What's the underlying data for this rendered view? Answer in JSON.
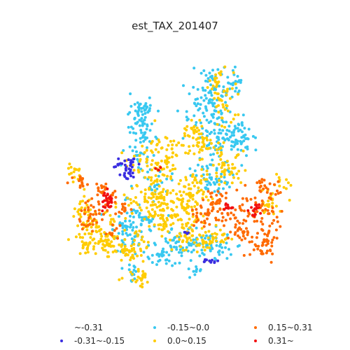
{
  "title": "est_TAX_201407",
  "legend": {
    "items": [
      {
        "label": "~-0.31",
        "color": "#ffffff"
      },
      {
        "label": "-0.31~-0.15",
        "color": "#3a2de0"
      },
      {
        "label": "-0.15~0.0",
        "color": "#38c8f0"
      },
      {
        "label": "0.0~0.15",
        "color": "#ffcc00"
      },
      {
        "label": "0.15~0.31",
        "color": "#ff6a00"
      },
      {
        "label": "0.31~",
        "color": "#f21010"
      }
    ]
  },
  "chart_data": {
    "type": "scatter",
    "title": "est_TAX_201407",
    "classes": [
      "~-0.31",
      "-0.31~-0.15",
      "-0.15~0.0",
      "0.0~0.15",
      "0.15~0.31",
      "0.31~"
    ],
    "colors": [
      "#ffffff",
      "#3a2de0",
      "#38c8f0",
      "#ffcc00",
      "#ff6a00",
      "#f21010"
    ],
    "axes": "off",
    "grid": false,
    "legend_placement": "bottom"
  }
}
